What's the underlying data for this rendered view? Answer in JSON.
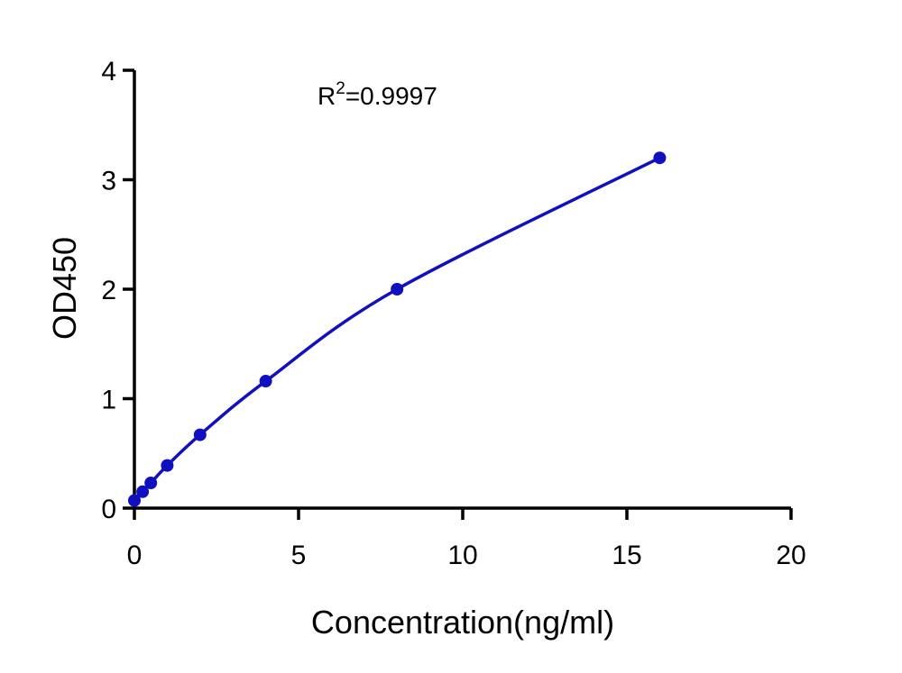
{
  "chart_data": {
    "type": "scatter",
    "xlabel": "Concentration(ng/ml)",
    "ylabel": "OD450",
    "xlim": [
      0,
      20
    ],
    "ylim": [
      0,
      4
    ],
    "xticks": [
      0,
      5,
      10,
      15,
      20
    ],
    "yticks": [
      0,
      1,
      2,
      3,
      4
    ],
    "grid": false,
    "annotation": {
      "base": "R",
      "superscript": "2",
      "rest": "=0.9997"
    },
    "colors": {
      "series": "#1010c0",
      "axis": "#000000"
    },
    "series": [
      {
        "points": [
          {
            "x": 0,
            "y": 0.07
          },
          {
            "x": 0.25,
            "y": 0.15
          },
          {
            "x": 0.5,
            "y": 0.23
          },
          {
            "x": 1,
            "y": 0.39
          },
          {
            "x": 2,
            "y": 0.67
          },
          {
            "x": 4,
            "y": 1.16
          },
          {
            "x": 8,
            "y": 2.0
          },
          {
            "x": 16,
            "y": 3.2
          }
        ],
        "fit": "4PL"
      }
    ]
  }
}
